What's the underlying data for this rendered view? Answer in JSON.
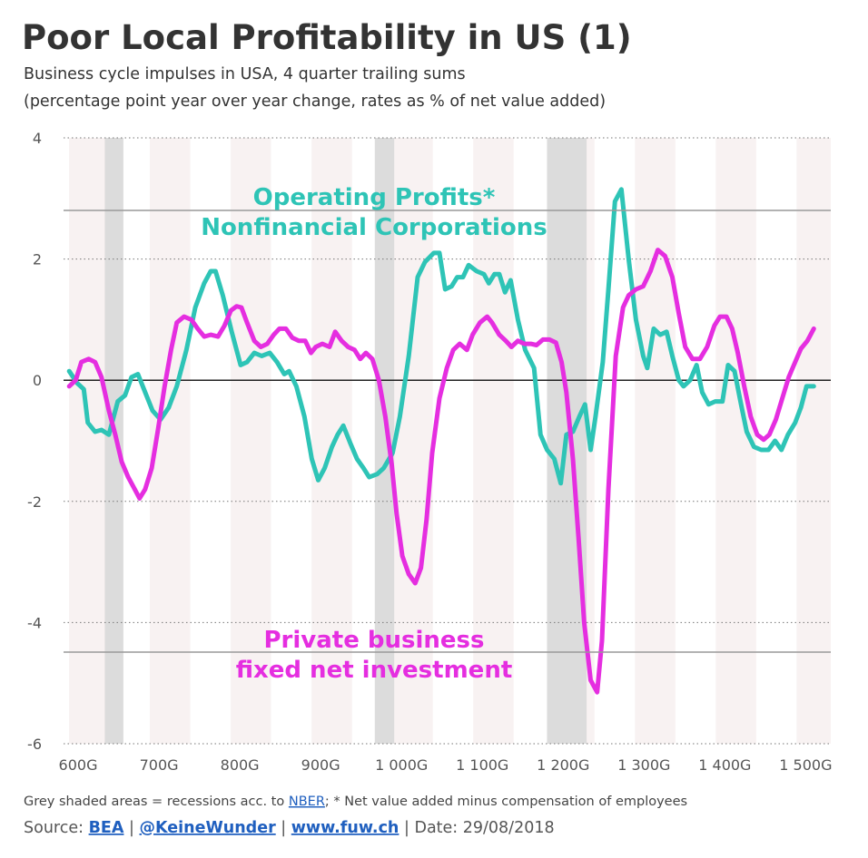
{
  "chart_data": {
    "type": "line",
    "title": "Poor Local Profitability in US (1)",
    "subtitle": [
      "Business cycle impulses in USA, 4 quarter trailing sums",
      "(percentage point year over year change, rates as % of net value added)"
    ],
    "xlim": [
      582,
      1531
    ],
    "xticks": [
      {
        "value": 600,
        "label": "600G"
      },
      {
        "value": 700,
        "label": "700G"
      },
      {
        "value": 800,
        "label": "800G"
      },
      {
        "value": 900,
        "label": "900G"
      },
      {
        "value": 1000,
        "label": "1 000G"
      },
      {
        "value": 1100,
        "label": "1 100G"
      },
      {
        "value": 1200,
        "label": "1 200G"
      },
      {
        "value": 1300,
        "label": "1 300G"
      },
      {
        "value": 1400,
        "label": "1 400G"
      },
      {
        "value": 1500,
        "label": "1 500G"
      }
    ],
    "ylim": [
      -6,
      4
    ],
    "yticks": [
      -6,
      -4,
      -2,
      0,
      2,
      4
    ],
    "grid": true,
    "recessions": [
      [
        633,
        656
      ],
      [
        967,
        991
      ],
      [
        1180,
        1229
      ]
    ],
    "series": [
      {
        "color": "#2ec4b6",
        "x": [
          589,
          599,
          607,
          612,
          621,
          629,
          638,
          649,
          658,
          666,
          674,
          683,
          692,
          702,
          712,
          722,
          734,
          745,
          756,
          764,
          770,
          779,
          790,
          801,
          809,
          818,
          827,
          837,
          846,
          855,
          861,
          870,
          880,
          889,
          897,
          905,
          914,
          921,
          928,
          937,
          945,
          953,
          960,
          970,
          978,
          989,
          998,
          1009,
          1020,
          1029,
          1040,
          1047,
          1054,
          1062,
          1069,
          1076,
          1083,
          1093,
          1102,
          1108,
          1115,
          1121,
          1128,
          1135,
          1144,
          1153,
          1164,
          1172,
          1180,
          1189,
          1197,
          1204,
          1212,
          1220,
          1227,
          1234,
          1240,
          1249,
          1256,
          1264,
          1272,
          1281,
          1290,
          1299,
          1304,
          1312,
          1320,
          1328,
          1335,
          1343,
          1349,
          1357,
          1365,
          1372,
          1380,
          1388,
          1397,
          1404,
          1412,
          1420,
          1427,
          1436,
          1445,
          1454,
          1462,
          1470,
          1478,
          1487,
          1494,
          1501,
          1510
        ],
        "values": [
          0.15,
          -0.05,
          -0.15,
          -0.7,
          -0.85,
          -0.82,
          -0.9,
          -0.35,
          -0.25,
          0.05,
          0.1,
          -0.2,
          -0.5,
          -0.65,
          -0.45,
          -0.1,
          0.5,
          1.2,
          1.6,
          1.8,
          1.8,
          1.4,
          0.8,
          0.25,
          0.3,
          0.45,
          0.4,
          0.45,
          0.3,
          0.1,
          0.15,
          -0.1,
          -0.6,
          -1.3,
          -1.65,
          -1.45,
          -1.1,
          -0.9,
          -0.75,
          -1.05,
          -1.3,
          -1.45,
          -1.6,
          -1.55,
          -1.45,
          -1.2,
          -0.6,
          0.4,
          1.7,
          1.95,
          2.1,
          2.1,
          1.5,
          1.55,
          1.7,
          1.7,
          1.9,
          1.8,
          1.75,
          1.6,
          1.75,
          1.75,
          1.45,
          1.65,
          1.0,
          0.5,
          0.2,
          -0.9,
          -1.15,
          -1.3,
          -1.7,
          -0.9,
          -0.85,
          -0.6,
          -0.4,
          -1.15,
          -0.6,
          0.3,
          1.5,
          2.95,
          3.15,
          2.0,
          1.0,
          0.4,
          0.2,
          0.85,
          0.75,
          0.8,
          0.4,
          0.0,
          -0.1,
          0.0,
          0.25,
          -0.2,
          -0.4,
          -0.35,
          -0.35,
          0.25,
          0.15,
          -0.4,
          -0.85,
          -1.1,
          -1.15,
          -1.15,
          -1.0,
          -1.15,
          -0.9,
          -0.7,
          -0.45,
          -0.1,
          -0.1
        ]
      },
      {
        "color": "#e52ee0",
        "x": [
          589,
          597,
          604,
          613,
          621,
          629,
          638,
          646,
          654,
          662,
          670,
          676,
          683,
          691,
          699,
          707,
          715,
          722,
          731,
          740,
          748,
          756,
          764,
          773,
          781,
          789,
          796,
          802,
          809,
          818,
          826,
          834,
          842,
          849,
          857,
          865,
          873,
          881,
          888,
          894,
          902,
          911,
          918,
          926,
          934,
          942,
          949,
          956,
          964,
          972,
          980,
          988,
          994,
          1001,
          1009,
          1017,
          1024,
          1031,
          1038,
          1047,
          1056,
          1064,
          1072,
          1081,
          1088,
          1097,
          1106,
          1112,
          1121,
          1129,
          1136,
          1144,
          1152,
          1160,
          1167,
          1175,
          1183,
          1191,
          1198,
          1204,
          1212,
          1219,
          1226,
          1234,
          1242,
          1248,
          1256,
          1265,
          1274,
          1281,
          1290,
          1299,
          1308,
          1317,
          1326,
          1335,
          1343,
          1351,
          1360,
          1369,
          1378,
          1387,
          1394,
          1402,
          1409,
          1416,
          1424,
          1432,
          1440,
          1448,
          1455,
          1463,
          1471,
          1479,
          1487,
          1494,
          1502,
          1510
        ],
        "values": [
          -0.1,
          0.0,
          0.3,
          0.35,
          0.3,
          0.05,
          -0.5,
          -0.9,
          -1.35,
          -1.6,
          -1.8,
          -1.95,
          -1.8,
          -1.45,
          -0.8,
          -0.1,
          0.5,
          0.95,
          1.05,
          1.0,
          0.85,
          0.72,
          0.75,
          0.72,
          0.9,
          1.15,
          1.22,
          1.2,
          0.95,
          0.65,
          0.55,
          0.6,
          0.75,
          0.85,
          0.85,
          0.7,
          0.65,
          0.65,
          0.45,
          0.55,
          0.6,
          0.55,
          0.8,
          0.65,
          0.55,
          0.5,
          0.35,
          0.45,
          0.35,
          0.0,
          -0.6,
          -1.4,
          -2.2,
          -2.9,
          -3.2,
          -3.35,
          -3.1,
          -2.3,
          -1.2,
          -0.3,
          0.2,
          0.5,
          0.6,
          0.5,
          0.75,
          0.95,
          1.05,
          0.95,
          0.75,
          0.65,
          0.55,
          0.65,
          0.6,
          0.6,
          0.58,
          0.67,
          0.67,
          0.62,
          0.3,
          -0.2,
          -1.3,
          -2.6,
          -4.0,
          -4.95,
          -5.15,
          -4.3,
          -1.8,
          0.4,
          1.2,
          1.4,
          1.5,
          1.55,
          1.8,
          2.15,
          2.05,
          1.7,
          1.1,
          0.55,
          0.35,
          0.35,
          0.55,
          0.9,
          1.05,
          1.05,
          0.85,
          0.45,
          -0.1,
          -0.6,
          -0.9,
          -0.98,
          -0.9,
          -0.65,
          -0.3,
          0.05,
          0.3,
          0.52,
          0.65,
          0.85
        ]
      }
    ],
    "annotations": [
      {
        "lines": [
          "Operating Profits*",
          "Nonfinancial Corporations"
        ],
        "color": "#2ec4b6"
      },
      {
        "lines": [
          "Private business",
          "fixed net investment"
        ],
        "color": "#e52ee0"
      }
    ],
    "footnote": {
      "before": "Grey shaded areas = recessions acc. to ",
      "link": "NBER",
      "after": "; * Net value added minus compensation of employees"
    },
    "source": {
      "label": "Source:",
      "links": [
        "BEA",
        "@KeineWunder",
        "www.fuw.ch"
      ],
      "separator": "|",
      "date": "Date: 29/08/2018"
    }
  }
}
